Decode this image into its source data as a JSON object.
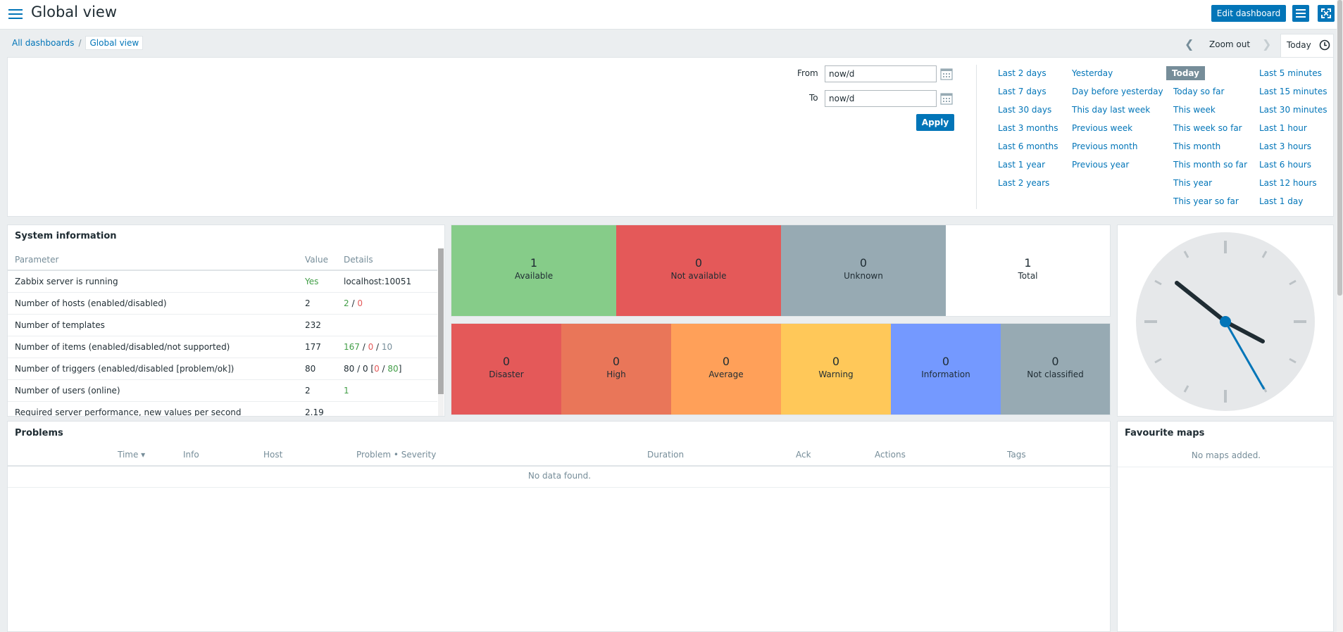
{
  "header": {
    "title": "Global view",
    "edit_button": "Edit dashboard",
    "menu_icon": "menu-icon",
    "kiosk_icon": "fullscreen-icon"
  },
  "breadcrumb": {
    "root": "All dashboards",
    "separator": "/",
    "current": "Global view"
  },
  "timebar": {
    "zoom_out": "Zoom out",
    "tab_label": "Today",
    "from_label": "From",
    "from_value": "now/d",
    "to_label": "To",
    "to_value": "now/d",
    "apply": "Apply",
    "quick_ranges": [
      [
        "Last 2 days",
        "Last 7 days",
        "Last 30 days",
        "Last 3 months",
        "Last 6 months",
        "Last 1 year",
        "Last 2 years"
      ],
      [
        "Yesterday",
        "Day before yesterday",
        "This day last week",
        "Previous week",
        "Previous month",
        "Previous year"
      ],
      [
        "Today",
        "Today so far",
        "This week",
        "This week so far",
        "This month",
        "This month so far",
        "This year",
        "This year so far"
      ],
      [
        "Last 5 minutes",
        "Last 15 minutes",
        "Last 30 minutes",
        "Last 1 hour",
        "Last 3 hours",
        "Last 6 hours",
        "Last 12 hours",
        "Last 1 day"
      ]
    ]
  },
  "system_info": {
    "title": "System information",
    "columns": [
      "Parameter",
      "Value",
      "Details"
    ],
    "rows": [
      {
        "param": "Zabbix server is running",
        "value": "Yes",
        "details": "localhost:10051"
      },
      {
        "param": "Number of hosts (enabled/disabled)",
        "value": "2",
        "d1": "2",
        "d2": "0"
      },
      {
        "param": "Number of templates",
        "value": "232"
      },
      {
        "param": "Number of items (enabled/disabled/not supported)",
        "value": "177",
        "d1": "167",
        "d2": "0",
        "d3": "10"
      },
      {
        "param": "Number of triggers (enabled/disabled [problem/ok])",
        "value": "80",
        "d1": "80",
        "d2": "0",
        "d3": "0",
        "d4": "80"
      },
      {
        "param": "Number of users (online)",
        "value": "2",
        "d1": "1"
      },
      {
        "param": "Required server performance, new values per second",
        "value": "2.19"
      }
    ]
  },
  "host_availability": [
    {
      "count": "1",
      "label": "Available",
      "color": "#86cc89"
    },
    {
      "count": "0",
      "label": "Not available",
      "color": "#e45959"
    },
    {
      "count": "0",
      "label": "Unknown",
      "color": "#97aab3"
    },
    {
      "count": "1",
      "label": "Total",
      "color": "#ffffff"
    }
  ],
  "problems_by_severity": [
    {
      "count": "0",
      "label": "Disaster",
      "color": "#e45959"
    },
    {
      "count": "0",
      "label": "High",
      "color": "#e97659"
    },
    {
      "count": "0",
      "label": "Average",
      "color": "#ffa059"
    },
    {
      "count": "0",
      "label": "Warning",
      "color": "#ffc859"
    },
    {
      "count": "0",
      "label": "Information",
      "color": "#7499ff"
    },
    {
      "count": "0",
      "label": "Not classified",
      "color": "#97aab3"
    }
  ],
  "problems": {
    "title": "Problems",
    "columns": [
      "Time ▾",
      "Info",
      "Host",
      "Problem • Severity",
      "Duration",
      "Ack",
      "Actions",
      "Tags"
    ],
    "empty": "No data found."
  },
  "favourite_maps": {
    "title": "Favourite maps",
    "empty": "No maps added."
  },
  "colors": {
    "accent": "#0275b8",
    "background": "#ebeef0",
    "muted": "#768d99"
  }
}
